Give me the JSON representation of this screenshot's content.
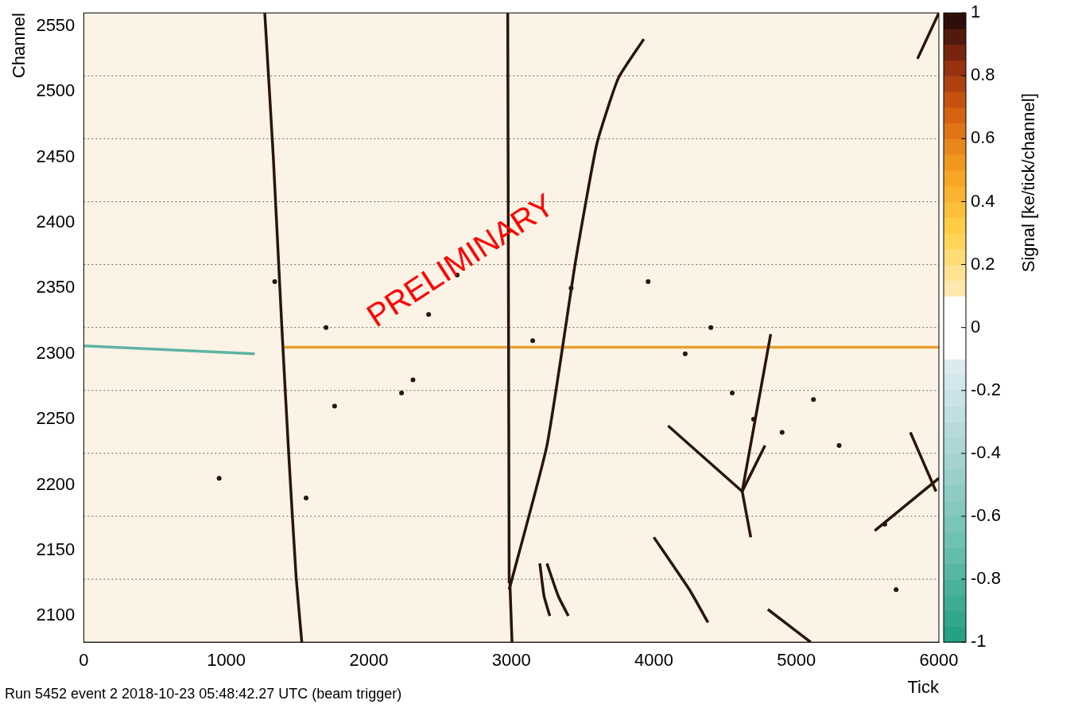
{
  "chart_data": {
    "type": "scatter",
    "x_label": "Tick",
    "y_label": "Channel",
    "xlim": [
      0,
      6000
    ],
    "xticks": [
      0,
      1000,
      2000,
      3000,
      4000,
      5000,
      6000
    ],
    "ylim": [
      2080,
      2560
    ],
    "yticks": [
      2100,
      2150,
      2200,
      2250,
      2300,
      2350,
      2400,
      2450,
      2500,
      2550
    ],
    "grid": false,
    "tick_labels": true,
    "dividers": [
      2128,
      2176,
      2224,
      2272,
      2320,
      2368,
      2416,
      2464,
      2512
    ],
    "series": [
      {
        "type": "line",
        "color": "#2a1608",
        "marker": "none",
        "line_style": "solid",
        "x": [
          1270,
          1330,
          1390,
          1440,
          1490,
          1530
        ],
        "values": [
          2560,
          2450,
          2320,
          2220,
          2130,
          2080
        ]
      },
      {
        "type": "line",
        "color": "#2a1608",
        "marker": "none",
        "line_style": "solid",
        "x": [
          2975,
          2980,
          2985
        ],
        "values": [
          2560,
          2340,
          2125
        ]
      },
      {
        "type": "line",
        "color": "#2a1608",
        "marker": "none",
        "line_style": "solid",
        "x": [
          2985,
          3250,
          3450,
          3600,
          3750,
          3930
        ],
        "values": [
          2120,
          2230,
          2370,
          2460,
          2510,
          2540
        ]
      },
      {
        "type": "line",
        "color": "#2a1608",
        "marker": "none",
        "line_style": "solid",
        "x": [
          2990,
          3005
        ],
        "values": [
          2125,
          2080
        ]
      },
      {
        "type": "line",
        "color": "#2a1608",
        "marker": "none",
        "line_style": "solid",
        "x": [
          3200,
          3230,
          3270
        ],
        "values": [
          2140,
          2115,
          2100
        ]
      },
      {
        "type": "line",
        "color": "#2a1608",
        "marker": "none",
        "line_style": "solid",
        "x": [
          3250,
          3330,
          3400
        ],
        "values": [
          2140,
          2115,
          2100
        ]
      },
      {
        "type": "line",
        "color": "#2a1608",
        "marker": "none",
        "line_style": "solid",
        "x": [
          4000,
          4250,
          4380
        ],
        "values": [
          2160,
          2120,
          2095
        ]
      },
      {
        "type": "line",
        "color": "#2a1608",
        "marker": "none",
        "line_style": "solid",
        "x": [
          4100,
          4620
        ],
        "values": [
          2245,
          2195
        ]
      },
      {
        "type": "line",
        "color": "#2a1608",
        "marker": "none",
        "line_style": "solid",
        "x": [
          4620,
          4820
        ],
        "values": [
          2195,
          2315
        ]
      },
      {
        "type": "line",
        "color": "#2a1608",
        "marker": "none",
        "line_style": "solid",
        "x": [
          4620,
          4680
        ],
        "values": [
          2195,
          2160
        ]
      },
      {
        "type": "line",
        "color": "#2a1608",
        "marker": "none",
        "line_style": "solid",
        "x": [
          4620,
          4780
        ],
        "values": [
          2195,
          2230
        ]
      },
      {
        "type": "line",
        "color": "#2a1608",
        "marker": "none",
        "line_style": "solid",
        "x": [
          4800,
          5100
        ],
        "values": [
          2105,
          2080
        ]
      },
      {
        "type": "line",
        "color": "#2a1608",
        "marker": "none",
        "line_style": "solid",
        "x": [
          5550,
          6000
        ],
        "values": [
          2165,
          2205
        ]
      },
      {
        "type": "line",
        "color": "#2a1608",
        "marker": "none",
        "line_style": "solid",
        "x": [
          5800,
          5980
        ],
        "values": [
          2240,
          2195
        ]
      },
      {
        "type": "line",
        "color": "#2a1608",
        "marker": "none",
        "line_style": "solid",
        "x": [
          5850,
          6000
        ],
        "values": [
          2525,
          2560
        ]
      },
      {
        "type": "line",
        "color": "#5fb3a3",
        "marker": "none",
        "line_style": "solid",
        "x": [
          0,
          1200
        ],
        "values": [
          2306,
          2300
        ]
      },
      {
        "type": "line",
        "color": "#e8a030",
        "marker": "none",
        "line_style": "solid",
        "x": [
          1400,
          6000
        ],
        "values": [
          2305,
          2305
        ]
      },
      {
        "type": "scatter",
        "color": "#2a1608",
        "marker": "circle",
        "line_style": "none",
        "x": [
          950,
          1340,
          1560,
          1700,
          1760,
          2230,
          2310,
          2420,
          2620,
          3150,
          3420,
          3960,
          4220,
          4400,
          4550,
          4700,
          4900,
          5120,
          5300,
          5620,
          5700
        ],
        "values": [
          2205,
          2355,
          2190,
          2320,
          2260,
          2270,
          2280,
          2330,
          2360,
          2310,
          2350,
          2355,
          2300,
          2320,
          2270,
          2250,
          2240,
          2265,
          2230,
          2170,
          2120
        ]
      }
    ],
    "colorbar": {
      "label": "Signal [ke/tick/channel]",
      "range": [
        -1,
        1
      ],
      "ticks": [
        -1,
        -0.8,
        -0.6,
        -0.4,
        -0.2,
        0,
        0.2,
        0.4,
        0.6,
        0.8,
        1
      ]
    },
    "annotations": [
      {
        "text": "PRELIMINARY",
        "x": 2650,
        "y": 2370,
        "color": "#ff0000"
      }
    ],
    "footer": "Run 5452 event 2 2018-10-23 05:48:42.27 UTC (beam trigger)"
  }
}
